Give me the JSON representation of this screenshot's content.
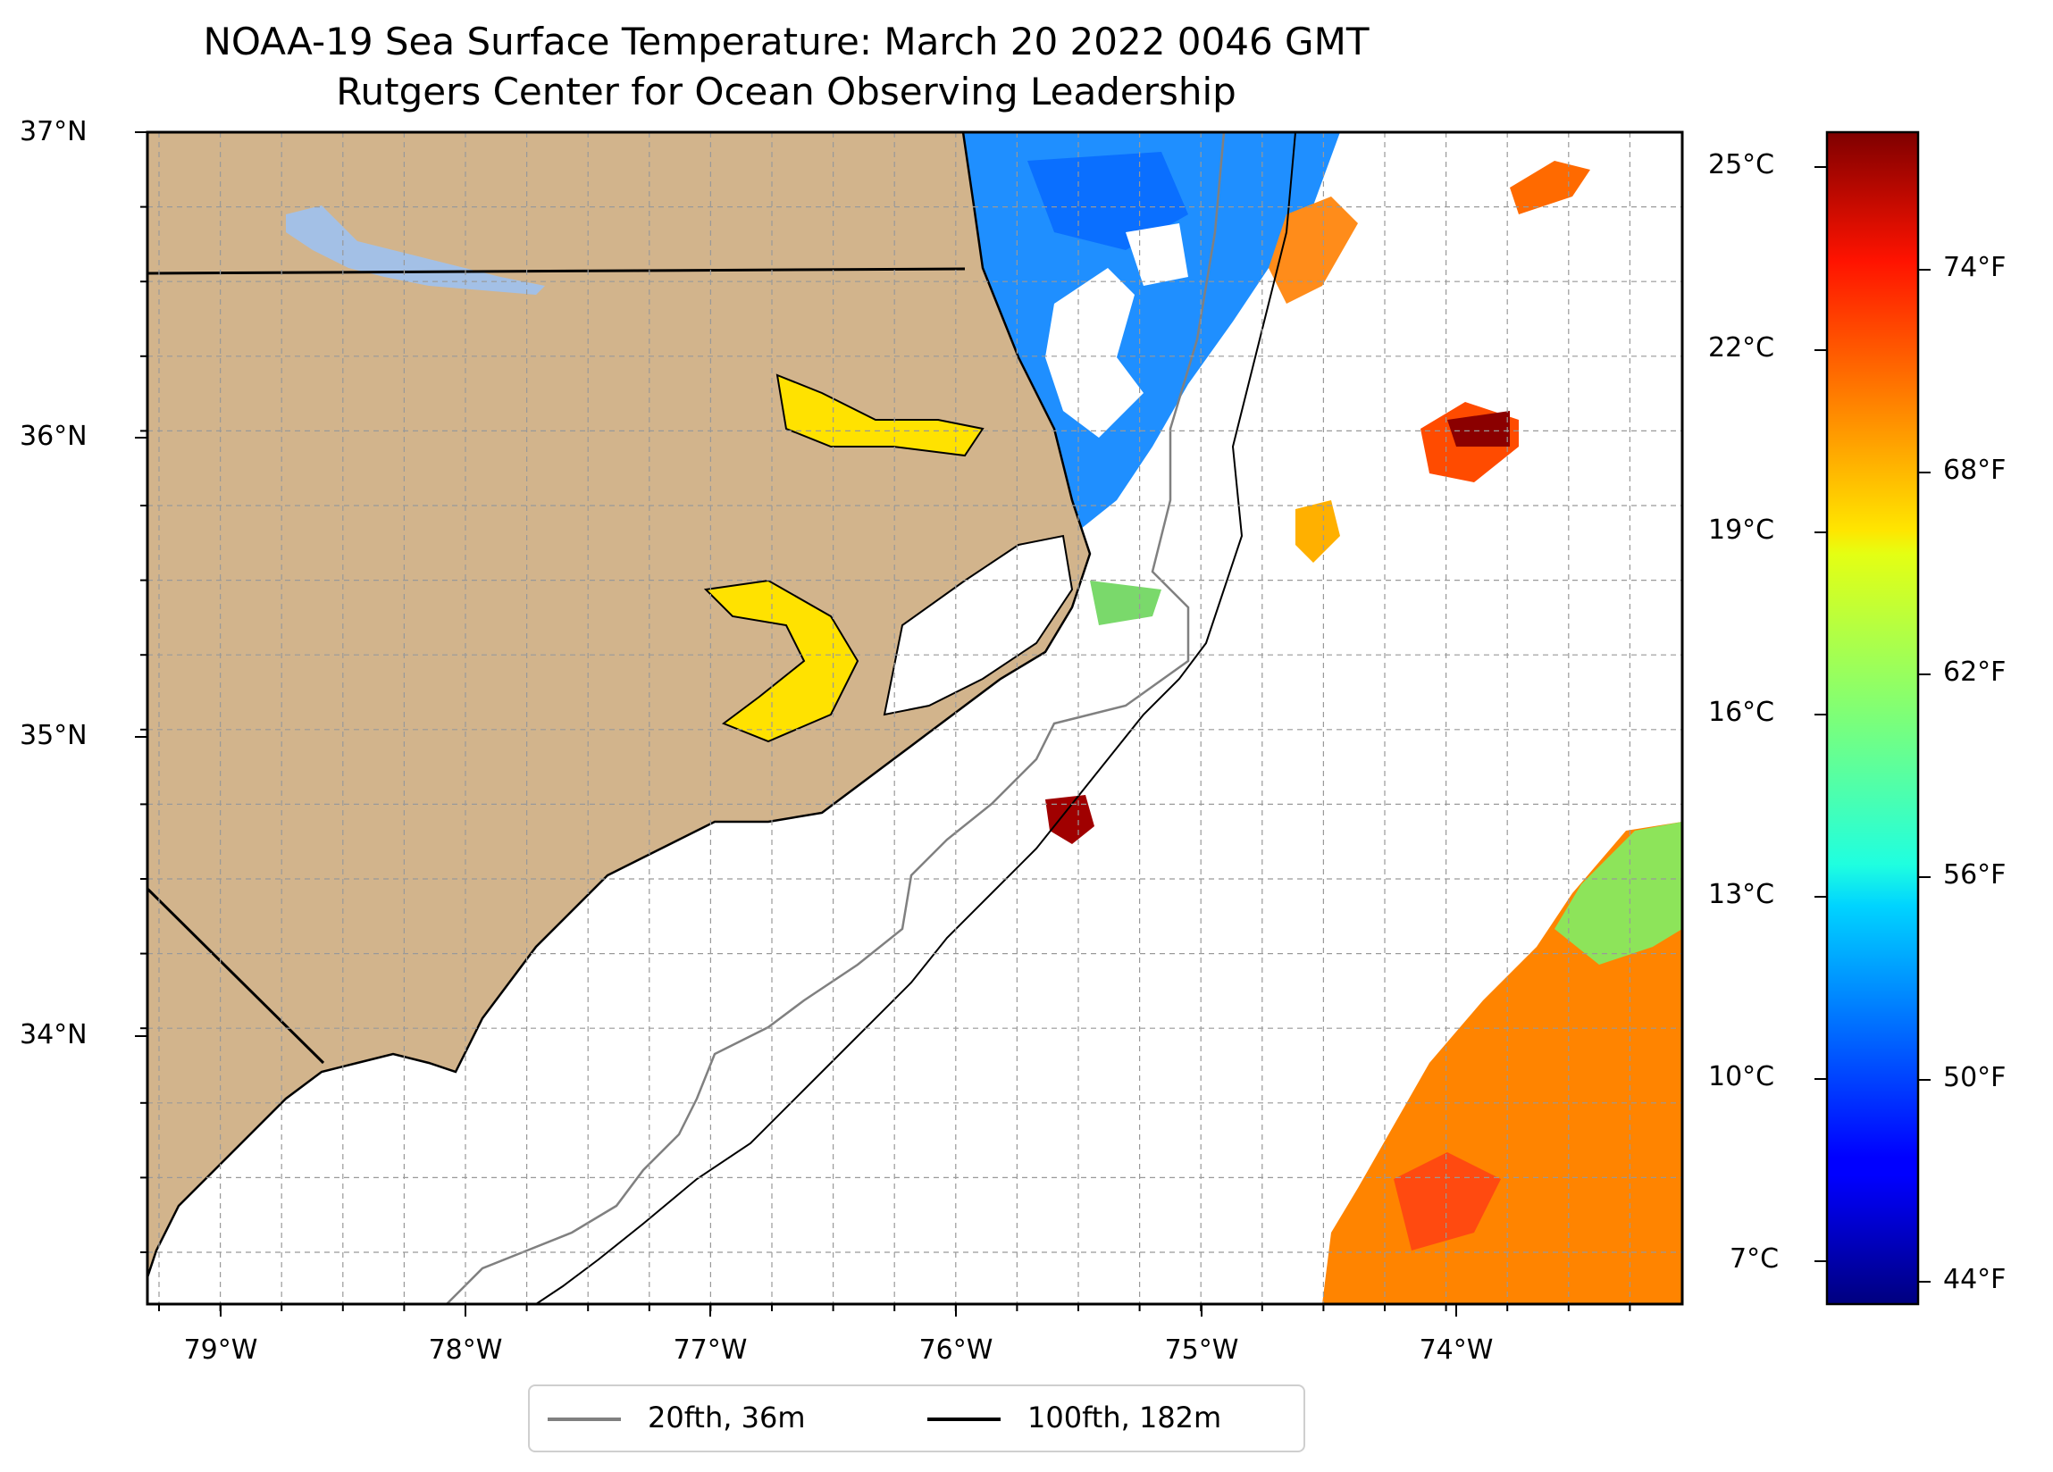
{
  "title": "NOAA-19 Sea Surface Temperature: March 20 2022 0046 GMT",
  "subtitle": "Rutgers Center for Ocean Observing Leadership",
  "map": {
    "lat_labels": [
      "37°N",
      "36°N",
      "35°N",
      "34°N"
    ],
    "lon_labels": [
      "79°W",
      "78°W",
      "77°W",
      "76°W",
      "75°W",
      "74°W"
    ],
    "colors": {
      "land": "#d2b48c",
      "lakes": "#a3c0e6",
      "ocean_background": "#ffffff",
      "isobath_20fth": "#808080",
      "isobath_100fth": "#000000"
    }
  },
  "colorbar": {
    "celsius_labels": [
      "25°C",
      "22°C",
      "19°C",
      "16°C",
      "13°C",
      "10°C",
      "7°C"
    ],
    "fahrenheit_labels": [
      "74°F",
      "68°F",
      "62°F",
      "56°F",
      "50°F",
      "44°F"
    ],
    "colormap": "jet"
  },
  "legend": {
    "items": [
      {
        "label": "20fth, 36m",
        "color": "#808080"
      },
      {
        "label": "100fth, 182m",
        "color": "#000000"
      }
    ]
  }
}
